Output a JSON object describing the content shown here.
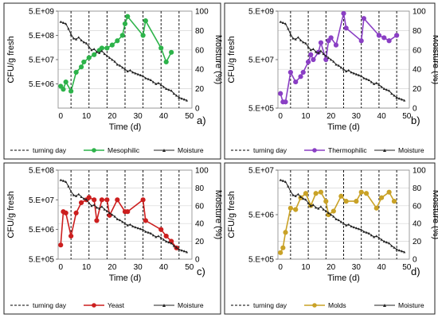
{
  "figure": {
    "colors": {
      "moisture": "#222222",
      "turning": "#000000",
      "grid": "#d6d6d6",
      "frame": "#222222"
    }
  },
  "chart_data": [
    {
      "type": "line",
      "panel_label": "a)",
      "xlabel": "Time (d)",
      "ylabel_left": "CFU/g fresh",
      "ylabel_right": "Moisture (%)",
      "x_ticks": [
        "0",
        "10",
        "20",
        "30",
        "40",
        "50"
      ],
      "xlim": [
        -1,
        51
      ],
      "y_left_ticks": [
        "5.E+09",
        "5.E+08",
        "5.E+07",
        "5.E+06"
      ],
      "y_left_log_range": [
        500000.0,
        5000000000.0
      ],
      "y_right_ticks": [
        "0",
        "20",
        "40",
        "60",
        "80",
        "100"
      ],
      "y_right_lim": [
        0,
        100
      ],
      "turning_days": [
        4,
        11,
        18,
        25,
        32,
        39,
        46
      ],
      "legend": [
        "turning day",
        "Mesophilic",
        "Moisture"
      ],
      "legend_position": "bottom",
      "series": [
        {
          "name": "Mesophilic",
          "axis": "left",
          "color": "#2db34a",
          "x": [
            0,
            1,
            2,
            4,
            6,
            8,
            9,
            11,
            13,
            15,
            16,
            18,
            20,
            22,
            24,
            25,
            26,
            32,
            33,
            39,
            41,
            43
          ],
          "y": [
            4000000.0,
            3000000.0,
            6000000.0,
            2500000.0,
            15000000.0,
            25000000.0,
            40000000.0,
            60000000.0,
            80000000.0,
            120000000.0,
            150000000.0,
            150000000.0,
            200000000.0,
            300000000.0,
            500000000.0,
            1500000000.0,
            3000000000.0,
            500000000.0,
            2000000000.0,
            150000000.0,
            40000000.0,
            100000000.0
          ]
        },
        {
          "name": "Moisture",
          "axis": "right",
          "color": "#222222",
          "x": [
            0,
            1,
            2,
            3,
            4,
            5,
            6,
            7,
            8,
            9,
            10,
            11,
            12,
            13,
            14,
            15,
            16,
            17,
            18,
            19,
            20,
            21,
            22,
            23,
            24,
            25,
            26,
            27,
            28,
            29,
            30,
            31,
            32,
            33,
            34,
            35,
            36,
            37,
            38,
            39,
            40,
            41,
            42,
            43,
            44,
            45,
            46,
            47,
            48,
            49
          ],
          "y": [
            89,
            88,
            87,
            82,
            76,
            72,
            71,
            73,
            70,
            68,
            67,
            63,
            60,
            61,
            58,
            57,
            59,
            56,
            54,
            52,
            50,
            48,
            45,
            44,
            42,
            40,
            38,
            39,
            37,
            36,
            35,
            34,
            33,
            31,
            30,
            29,
            27,
            25,
            26,
            24,
            22,
            20,
            19,
            18,
            15,
            13,
            11,
            10,
            9,
            8
          ]
        }
      ]
    },
    {
      "type": "line",
      "panel_label": "b)",
      "xlabel": "Time (d)",
      "ylabel_left": "CFU/g fresh",
      "ylabel_right": "Moisture (%)",
      "x_ticks": [
        "0",
        "10",
        "20",
        "30",
        "40",
        "50"
      ],
      "xlim": [
        -1,
        51
      ],
      "y_left_ticks": [
        "5.E+09",
        "5.E+07",
        "5.E+05"
      ],
      "y_left_log_range": [
        500000.0,
        5000000000.0
      ],
      "y_right_ticks": [
        "0",
        "20",
        "40",
        "60",
        "80",
        "100"
      ],
      "y_right_lim": [
        0,
        100
      ],
      "turning_days": [
        4,
        11,
        18,
        25,
        32,
        39,
        46
      ],
      "legend": [
        "turning day",
        "Thermophilic",
        "Moisture"
      ],
      "legend_position": "bottom",
      "series": [
        {
          "name": "Thermophilic",
          "axis": "left",
          "color": "#8a3fc4",
          "x": [
            0,
            1,
            2,
            4,
            6,
            8,
            9,
            11,
            12,
            13,
            15,
            16,
            18,
            19,
            20,
            22,
            25,
            26,
            32,
            33,
            39,
            41,
            43,
            46
          ],
          "y": [
            2000000.0,
            900000.0,
            900000.0,
            15000000.0,
            6000000.0,
            10000000.0,
            15000000.0,
            40000000.0,
            80000000.0,
            50000000.0,
            100000000.0,
            250000000.0,
            50000000.0,
            300000000.0,
            400000000.0,
            200000000.0,
            4000000000.0,
            1000000000.0,
            300000000.0,
            2500000000.0,
            500000000.0,
            400000000.0,
            300000000.0,
            500000000.0
          ]
        },
        {
          "name": "Moisture",
          "axis": "right",
          "color": "#222222",
          "x": [
            0,
            1,
            2,
            3,
            4,
            5,
            6,
            7,
            8,
            9,
            10,
            11,
            12,
            13,
            14,
            15,
            16,
            17,
            18,
            19,
            20,
            21,
            22,
            23,
            24,
            25,
            26,
            27,
            28,
            29,
            30,
            31,
            32,
            33,
            34,
            35,
            36,
            37,
            38,
            39,
            40,
            41,
            42,
            43,
            44,
            45,
            46,
            47,
            48,
            49
          ],
          "y": [
            89,
            88,
            87,
            82,
            76,
            72,
            71,
            73,
            70,
            68,
            67,
            63,
            60,
            61,
            58,
            57,
            59,
            56,
            54,
            52,
            50,
            48,
            45,
            44,
            42,
            40,
            38,
            39,
            37,
            36,
            35,
            34,
            33,
            31,
            30,
            29,
            27,
            25,
            26,
            24,
            22,
            20,
            19,
            18,
            15,
            13,
            11,
            10,
            9,
            8
          ]
        }
      ]
    },
    {
      "type": "line",
      "panel_label": "c)",
      "xlabel": "Time (d)",
      "ylabel_left": "CFU/g fresh",
      "ylabel_right": "Moisture (%)",
      "x_ticks": [
        "0",
        "10",
        "20",
        "30",
        "40",
        "50"
      ],
      "xlim": [
        -1,
        51
      ],
      "y_left_ticks": [
        "5.E+08",
        "5.E+07",
        "5.E+06",
        "5.E+05"
      ],
      "y_left_log_range": [
        500000.0,
        500000000.0
      ],
      "y_right_ticks": [
        "0",
        "20",
        "40",
        "60",
        "80",
        "100"
      ],
      "y_right_lim": [
        0,
        100
      ],
      "turning_days": [
        4,
        11,
        18,
        25,
        32,
        39,
        46
      ],
      "legend": [
        "turning day",
        "Yeast",
        "Moisture"
      ],
      "legend_position": "bottom",
      "series": [
        {
          "name": "Yeast",
          "axis": "left",
          "color": "#cc1f1f",
          "x": [
            0,
            1,
            2,
            4,
            6,
            8,
            10,
            11,
            13,
            14,
            16,
            18,
            19,
            22,
            25,
            26,
            32,
            33,
            39,
            41,
            43,
            45
          ],
          "y": [
            1500000.0,
            20000000.0,
            18000000.0,
            3000000.0,
            18000000.0,
            40000000.0,
            50000000.0,
            60000000.0,
            50000000.0,
            10000000.0,
            50000000.0,
            50000000.0,
            15000000.0,
            50000000.0,
            20000000.0,
            20000000.0,
            50000000.0,
            10000000.0,
            5000000.0,
            3000000.0,
            2000000.0,
            1200000.0
          ]
        },
        {
          "name": "Moisture",
          "axis": "right",
          "color": "#222222",
          "x": [
            0,
            1,
            2,
            3,
            4,
            5,
            6,
            7,
            8,
            9,
            10,
            11,
            12,
            13,
            14,
            15,
            16,
            17,
            18,
            19,
            20,
            21,
            22,
            23,
            24,
            25,
            26,
            27,
            28,
            29,
            30,
            31,
            32,
            33,
            34,
            35,
            36,
            37,
            38,
            39,
            40,
            41,
            42,
            43,
            44,
            45,
            46,
            47,
            48,
            49
          ],
          "y": [
            89,
            88,
            87,
            82,
            76,
            72,
            71,
            73,
            70,
            68,
            67,
            63,
            60,
            61,
            58,
            57,
            59,
            56,
            54,
            52,
            50,
            48,
            45,
            44,
            42,
            40,
            38,
            39,
            37,
            36,
            35,
            34,
            33,
            31,
            30,
            29,
            27,
            25,
            26,
            24,
            22,
            20,
            19,
            18,
            15,
            13,
            11,
            10,
            9,
            8
          ]
        }
      ]
    },
    {
      "type": "line",
      "panel_label": "d)",
      "xlabel": "Time (d)",
      "ylabel_left": "CFU/g fresh",
      "ylabel_right": "Moisture (%)",
      "x_ticks": [
        "0",
        "10",
        "20",
        "30",
        "40",
        "50"
      ],
      "xlim": [
        -1,
        51
      ],
      "y_left_ticks": [
        "5.E+07",
        "5.E+06",
        "5.E+05"
      ],
      "y_left_log_range": [
        500000.0,
        50000000.0
      ],
      "y_right_ticks": [
        "0",
        "20",
        "40",
        "60",
        "80",
        "100"
      ],
      "y_right_lim": [
        0,
        100
      ],
      "turning_days": [
        4,
        11,
        18,
        25,
        32,
        39,
        46
      ],
      "legend": [
        "turning day",
        "Molds",
        "Moisture"
      ],
      "legend_position": "bottom",
      "series": [
        {
          "name": "Molds",
          "axis": "left",
          "color": "#c9a227",
          "x": [
            0,
            1,
            2,
            4,
            6,
            8,
            10,
            12,
            14,
            16,
            18,
            19,
            21,
            24,
            26,
            30,
            32,
            34,
            38,
            40,
            43,
            45
          ],
          "y": [
            700000.0,
            900000.0,
            2000000.0,
            7000000.0,
            6500000.0,
            12000000.0,
            15000000.0,
            8000000.0,
            15000000.0,
            16000000.0,
            10000000.0,
            5000000.0,
            6000000.0,
            13000000.0,
            10000000.0,
            10000000.0,
            16000000.0,
            15000000.0,
            7000000.0,
            12000000.0,
            16000000.0,
            10000000.0
          ]
        },
        {
          "name": "Moisture",
          "axis": "right",
          "color": "#222222",
          "x": [
            0,
            1,
            2,
            3,
            4,
            5,
            6,
            7,
            8,
            9,
            10,
            11,
            12,
            13,
            14,
            15,
            16,
            17,
            18,
            19,
            20,
            21,
            22,
            23,
            24,
            25,
            26,
            27,
            28,
            29,
            30,
            31,
            32,
            33,
            34,
            35,
            36,
            37,
            38,
            39,
            40,
            41,
            42,
            43,
            44,
            45,
            46,
            47,
            48,
            49
          ],
          "y": [
            89,
            88,
            87,
            82,
            76,
            72,
            71,
            73,
            70,
            68,
            67,
            63,
            60,
            61,
            58,
            57,
            59,
            56,
            54,
            52,
            50,
            48,
            45,
            44,
            42,
            40,
            38,
            39,
            37,
            36,
            35,
            34,
            33,
            31,
            30,
            29,
            27,
            25,
            26,
            24,
            22,
            20,
            19,
            18,
            15,
            13,
            11,
            10,
            9,
            8
          ]
        }
      ]
    }
  ]
}
